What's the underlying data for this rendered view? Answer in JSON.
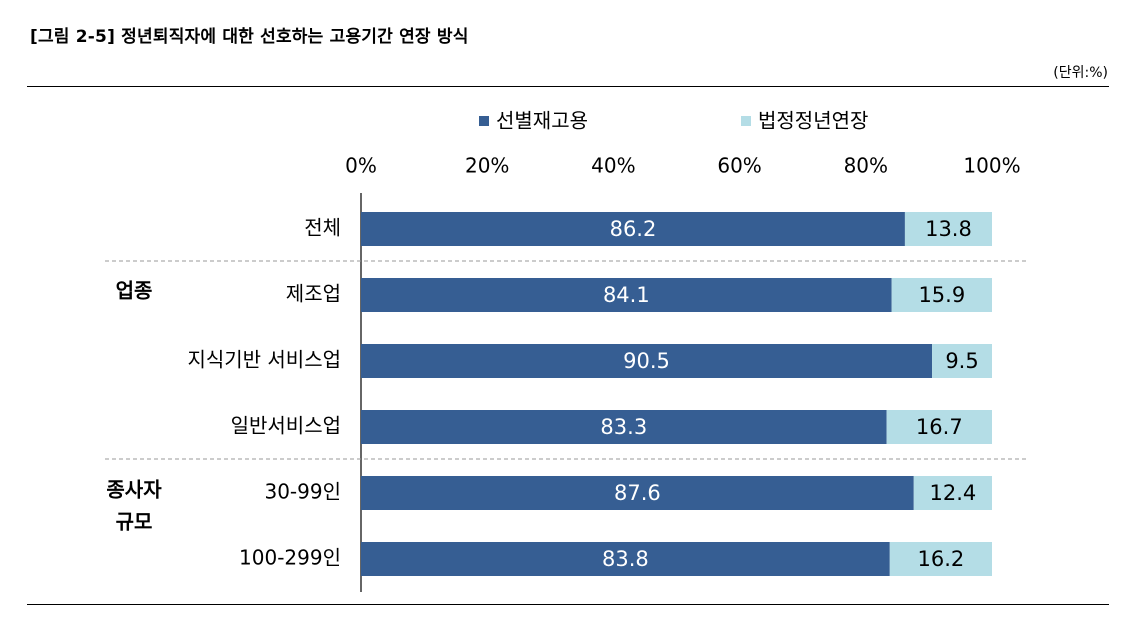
{
  "title": "[그림 2-5] 정년퇴직자에 대한 선호하는 고용기간 연장 방식",
  "unit": "(단위:%)",
  "colors": {
    "series1": "#365e93",
    "series2": "#b4dde6",
    "axis": "#000000",
    "separator": "#999999"
  },
  "chart_data": {
    "type": "bar",
    "orientation": "horizontal",
    "stacked": true,
    "xlim": [
      0,
      100
    ],
    "xticks": [
      "0%",
      "20%",
      "40%",
      "60%",
      "80%",
      "100%"
    ],
    "legend_position": "top",
    "groups": [
      {
        "label": "",
        "rows": [
          0
        ]
      },
      {
        "label": "업종",
        "rows": [
          1,
          2,
          3
        ]
      },
      {
        "label": "종사자\n규모",
        "rows": [
          4,
          5
        ]
      }
    ],
    "categories": [
      "전체",
      "제조업",
      "지식기반 서비스업",
      "일반서비스업",
      "30-99인",
      "100-299인"
    ],
    "series": [
      {
        "name": "선별재고용",
        "values": [
          86.2,
          84.1,
          90.5,
          83.3,
          87.6,
          83.8
        ]
      },
      {
        "name": "법정정년연장",
        "values": [
          13.8,
          15.9,
          9.5,
          16.7,
          12.4,
          16.2
        ]
      }
    ]
  }
}
